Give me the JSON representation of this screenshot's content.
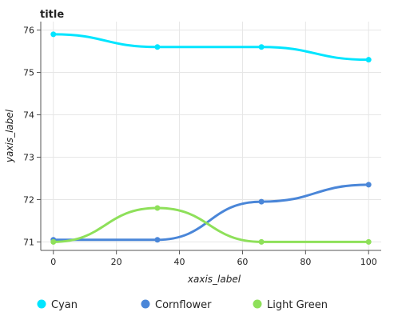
{
  "chart_data": {
    "type": "line",
    "title": "title",
    "xlabel": "xaxis_label",
    "ylabel": "yaxis_label",
    "xlim": [
      -4,
      104
    ],
    "ylim": [
      70.8,
      76.2
    ],
    "xticks": [
      0,
      20,
      40,
      60,
      80,
      100
    ],
    "yticks": [
      71,
      72,
      73,
      74,
      75,
      76
    ],
    "grid": true,
    "legend_position": "bottom",
    "series": [
      {
        "name": "Cyan",
        "color": "#00e5ff",
        "x": [
          0,
          33,
          66,
          100
        ],
        "y": [
          75.9,
          75.6,
          75.6,
          75.3
        ]
      },
      {
        "name": "Cornflower",
        "color": "#4a86d8",
        "x": [
          0,
          33,
          66,
          100
        ],
        "y": [
          71.05,
          71.05,
          71.95,
          72.35
        ]
      },
      {
        "name": "Light Green",
        "color": "#8ee05a",
        "x": [
          0,
          33,
          66,
          100
        ],
        "y": [
          71.0,
          71.8,
          71.0,
          71.0
        ]
      }
    ]
  }
}
